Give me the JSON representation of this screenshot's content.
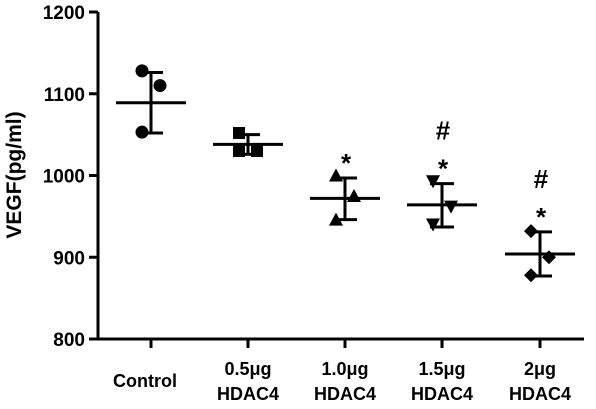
{
  "chart_data": {
    "type": "scatter",
    "title": "",
    "ylabel": "VEGF(pg/ml)",
    "xlabel": "",
    "ylim": [
      800,
      1200
    ],
    "yticks": [
      "800",
      "900",
      "1000",
      "1100",
      "1200"
    ],
    "categories": [
      {
        "line1": "Control",
        "line2": ""
      },
      {
        "line1": "0.5μg",
        "line2": "HDAC4"
      },
      {
        "line1": "1.0μg",
        "line2": "HDAC4"
      },
      {
        "line1": "1.5μg",
        "line2": "HDAC4"
      },
      {
        "line1": "2μg",
        "line2": "HDAC4"
      }
    ],
    "groups": [
      {
        "marker": "circle",
        "points": [
          1128,
          1110,
          1053
        ],
        "mean": 1089,
        "sd_low": 1052,
        "sd_high": 1126,
        "annotations": []
      },
      {
        "marker": "square",
        "points": [
          1052,
          1030,
          1030
        ],
        "mean": 1038,
        "sd_low": 1026,
        "sd_high": 1050,
        "annotations": []
      },
      {
        "marker": "triangle",
        "points": [
          1000,
          975,
          946
        ],
        "mean": 972,
        "sd_low": 946,
        "sd_high": 997,
        "annotations": [
          "*"
        ]
      },
      {
        "marker": "triangle-down",
        "points": [
          993,
          962,
          940
        ],
        "mean": 964,
        "sd_low": 937,
        "sd_high": 990,
        "annotations": [
          "*",
          "#"
        ]
      },
      {
        "marker": "diamond",
        "points": [
          932,
          900,
          878
        ],
        "mean": 904,
        "sd_low": 877,
        "sd_high": 931,
        "annotations": [
          "*",
          "#"
        ]
      }
    ],
    "grid": false,
    "legend": "none"
  }
}
